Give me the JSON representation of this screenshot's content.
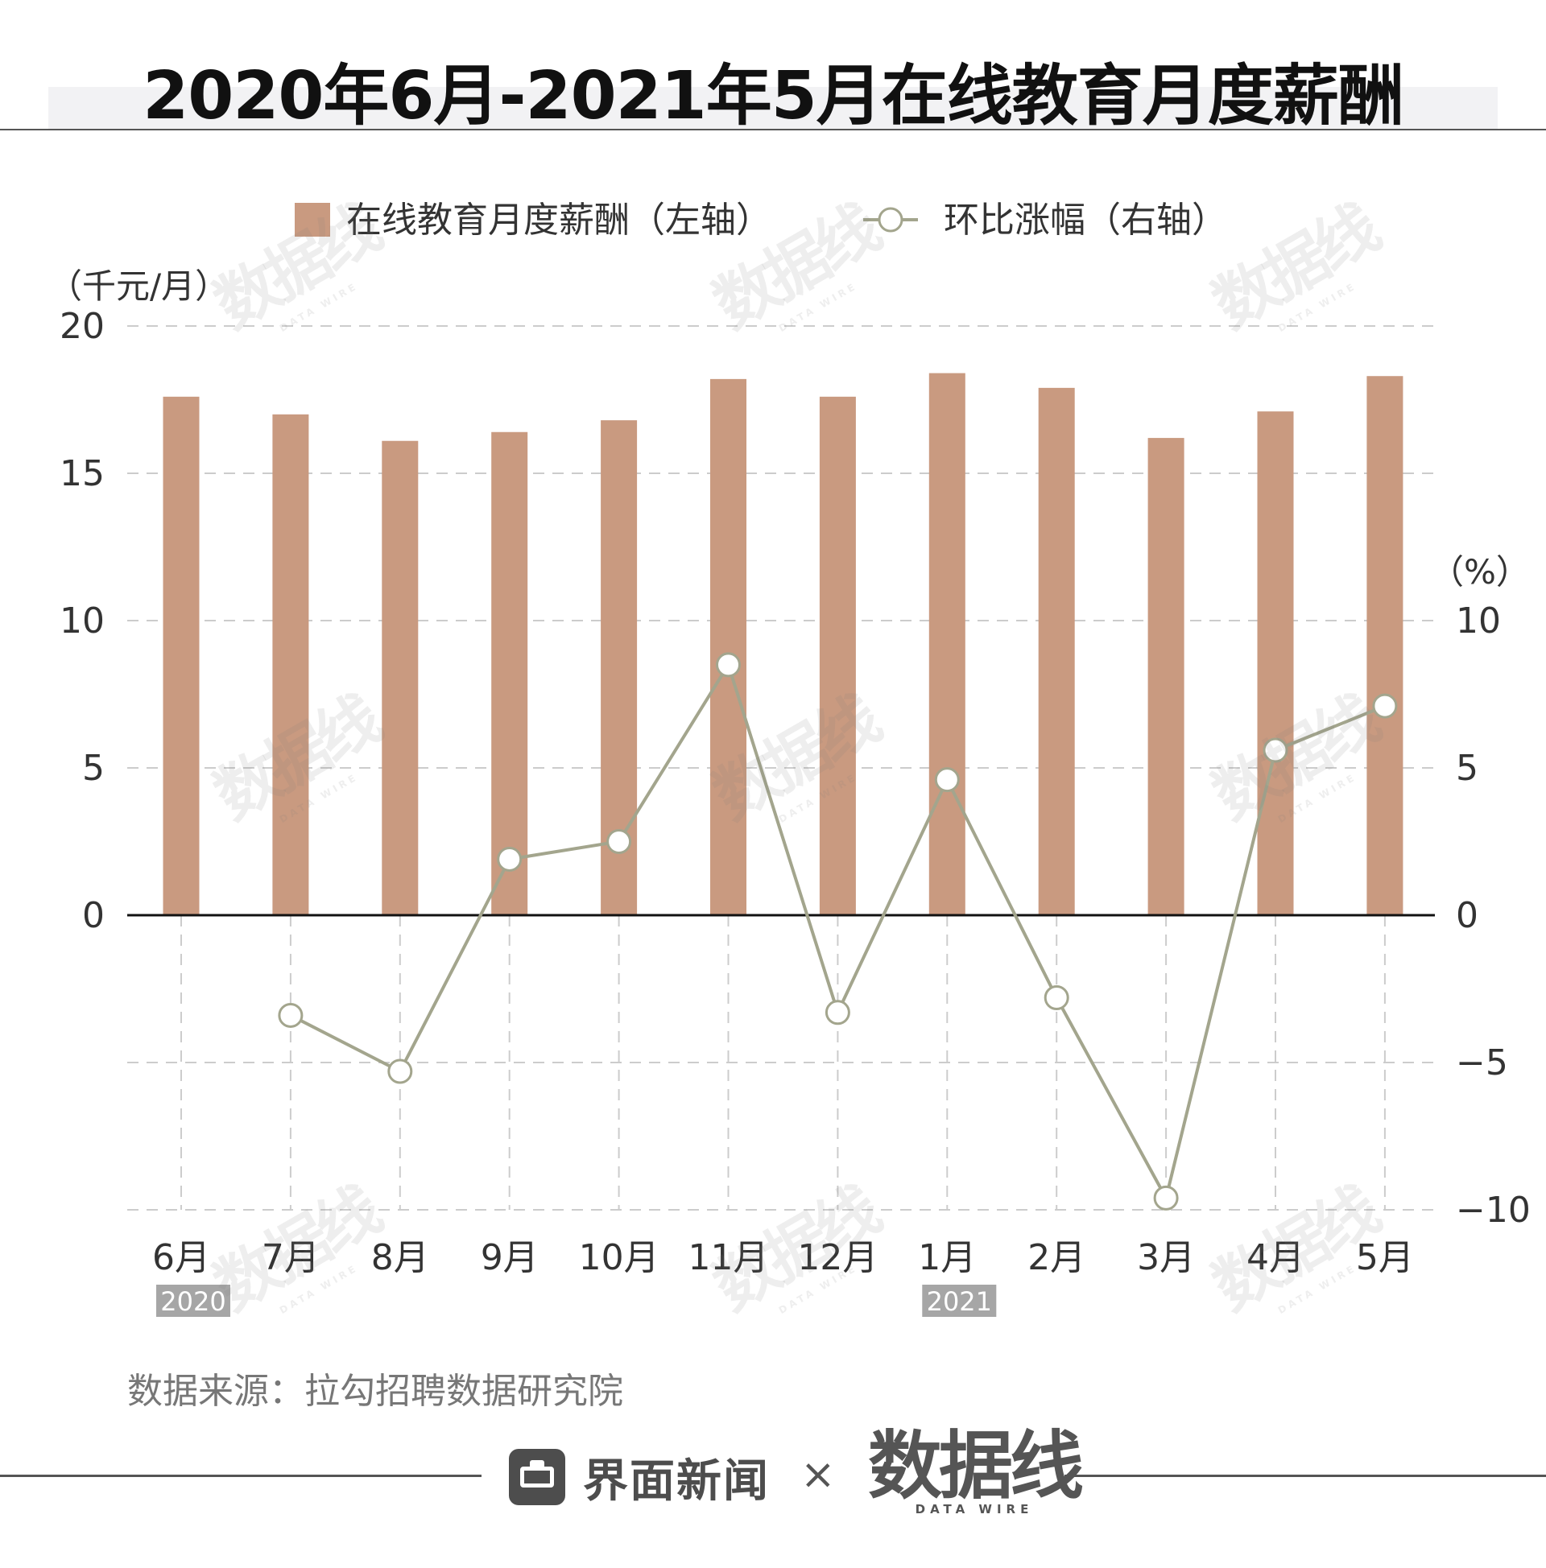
{
  "title": "2020年6月-2021年5月在线教育月度薪酬",
  "legend": {
    "bar_label": "在线教育月度薪酬（左轴）",
    "line_label": "环比涨幅（右轴）"
  },
  "source": "数据来源：拉勾招聘数据研究院",
  "footer": {
    "brand1": "界面新闻",
    "times": "×",
    "brand2": "数据线",
    "brand2_sub": "DATA WIRE"
  },
  "watermark": {
    "text": "数据线",
    "sub": "DATA WIRE"
  },
  "colors": {
    "bar": "#c99a80",
    "line": "#a3a58d",
    "grid": "#cccccc",
    "axis": "#111111",
    "year_badge": "#a6a6a6"
  },
  "chart_data": {
    "type": "bar+line",
    "categories": [
      "6月",
      "7月",
      "8月",
      "9月",
      "10月",
      "11月",
      "12月",
      "1月",
      "2月",
      "3月",
      "4月",
      "5月"
    ],
    "year_labels": [
      {
        "index": 0,
        "text": "2020"
      },
      {
        "index": 7,
        "text": "2021"
      }
    ],
    "series": [
      {
        "name": "在线教育月度薪酬（左轴）",
        "type": "bar",
        "axis": "left",
        "values": [
          17.6,
          17.0,
          16.1,
          16.4,
          16.8,
          18.2,
          17.6,
          18.4,
          17.9,
          16.2,
          17.1,
          18.3
        ]
      },
      {
        "name": "环比涨幅（右轴）",
        "type": "line",
        "axis": "right",
        "values": [
          null,
          -3.4,
          -5.3,
          1.9,
          2.5,
          8.5,
          -3.3,
          4.6,
          -2.8,
          -9.6,
          5.6,
          7.1
        ]
      }
    ],
    "left_axis": {
      "unit": "（千元/月）",
      "range": [
        -10,
        20
      ],
      "ticks": [
        0,
        5,
        10,
        15,
        20
      ]
    },
    "right_axis": {
      "unit": "（%）",
      "range": [
        -10,
        10
      ],
      "ticks": [
        -10,
        -5,
        0,
        5,
        10
      ]
    },
    "grid": true,
    "legend_position": "top-center"
  }
}
